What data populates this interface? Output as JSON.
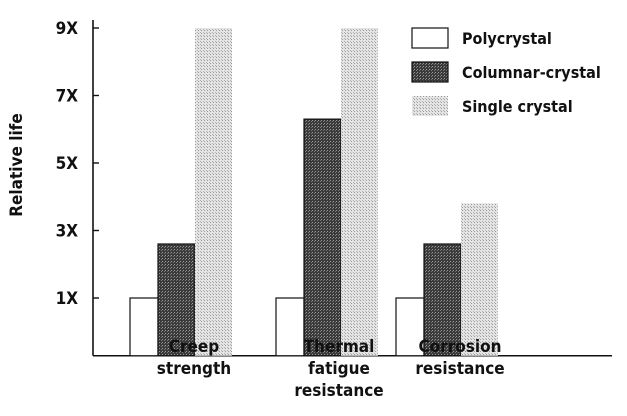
{
  "chart_data": {
    "type": "bar",
    "title": "",
    "xlabel": "",
    "ylabel": "Relative life",
    "ylim": [
      0,
      9
    ],
    "yticks": [
      1,
      3,
      5,
      7,
      9
    ],
    "ytick_labels": [
      "1X",
      "3X",
      "5X",
      "7X",
      "9X"
    ],
    "categories": [
      [
        "Creep",
        "strength"
      ],
      [
        "Thermal",
        "fatigue",
        "resistance"
      ],
      [
        "Corrosion",
        "resistance"
      ]
    ],
    "series": [
      {
        "name": "Polycrystal",
        "values": [
          1,
          1,
          1
        ],
        "pattern": "blank"
      },
      {
        "name": "Columnar-crystal",
        "values": [
          2.6,
          6.3,
          2.6
        ],
        "pattern": "dense"
      },
      {
        "name": "Single crystal",
        "values": [
          9,
          9,
          3.8
        ],
        "pattern": "light"
      }
    ],
    "legend": "top-right",
    "grid": false,
    "note": ""
  }
}
